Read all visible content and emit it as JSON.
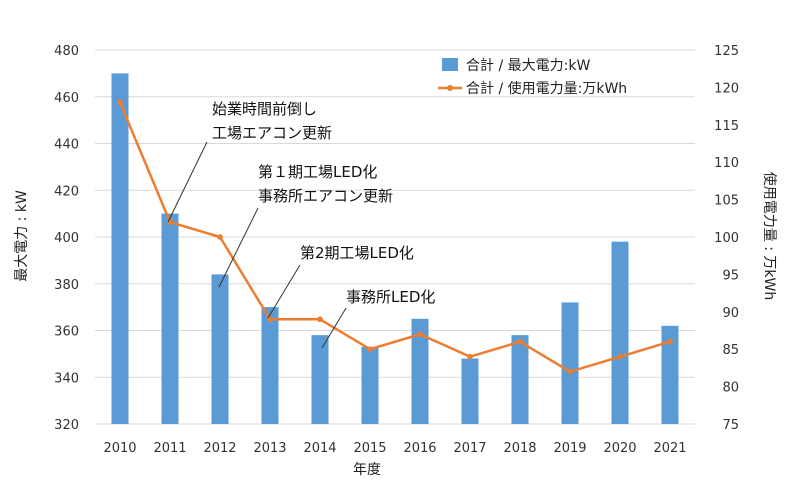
{
  "chart_data": {
    "type": "bar+line",
    "categories": [
      "2010",
      "2011",
      "2012",
      "2013",
      "2014",
      "2015",
      "2016",
      "2017",
      "2018",
      "2019",
      "2020",
      "2021"
    ],
    "xlabel": "年度",
    "series": [
      {
        "name": "合計 / 最大電力:kW",
        "type": "bar",
        "axis": "left",
        "color": "#5b9bd5",
        "values": [
          470,
          410,
          384,
          370,
          358,
          353,
          365,
          348,
          358,
          372,
          398,
          362
        ]
      },
      {
        "name": "合計 / 使用電力量:万kWh",
        "type": "line",
        "axis": "right",
        "color": "#ed7d31",
        "values": [
          118,
          102,
          100,
          89,
          89,
          85,
          87,
          84,
          86,
          82,
          84,
          86
        ]
      }
    ],
    "y_left": {
      "label": "最大電力 : kW",
      "range": [
        320,
        480
      ],
      "ticks": [
        320,
        340,
        360,
        380,
        400,
        420,
        440,
        460,
        480
      ]
    },
    "y_right": {
      "label": "使用電力量 : 万kWh",
      "range": [
        75,
        125
      ],
      "ticks": [
        75,
        80,
        85,
        90,
        95,
        100,
        105,
        110,
        115,
        120,
        125
      ]
    },
    "legend_position": "top-right",
    "annotations": [
      {
        "target_year": "2011",
        "lines": [
          "始業時間前倒し",
          "工場エアコン更新"
        ]
      },
      {
        "target_year": "2012",
        "lines": [
          "第１期工場LED化",
          "事務所エアコン更新"
        ]
      },
      {
        "target_year": "2013",
        "lines": [
          "第2期工場LED化"
        ]
      },
      {
        "target_year": "2014",
        "lines": [
          "事務所LED化"
        ]
      }
    ]
  }
}
